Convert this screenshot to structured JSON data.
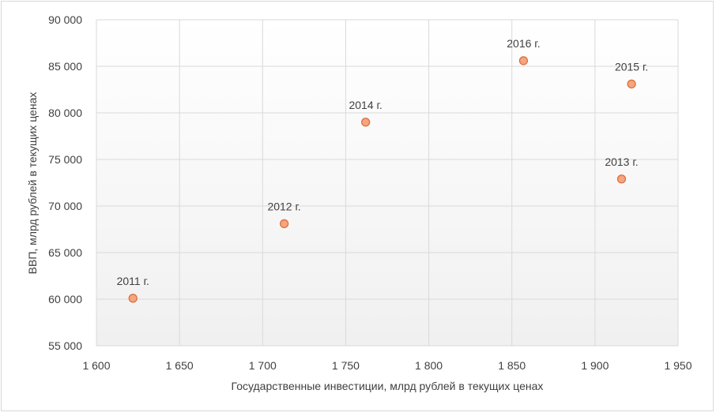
{
  "chart_data": {
    "type": "scatter",
    "title": "",
    "xlabel": "Государственные инвестиции, млрд рублей в текущих ценах",
    "ylabel": "ВВП, млрд рублей в текущих ценах",
    "xlim": [
      1600,
      1950
    ],
    "ylim": [
      55000,
      90000
    ],
    "x_ticks": [
      1600,
      1650,
      1700,
      1750,
      1800,
      1850,
      1900,
      1950
    ],
    "y_ticks": [
      55000,
      60000,
      65000,
      70000,
      75000,
      80000,
      85000,
      90000
    ],
    "x_tick_labels": [
      "1 600",
      "1 650",
      "1 700",
      "1 750",
      "1 800",
      "1 850",
      "1 900",
      "1 950"
    ],
    "y_tick_labels": [
      "55 000",
      "60 000",
      "65 000",
      "70 000",
      "75 000",
      "80 000",
      "85 000",
      "90 000"
    ],
    "grid": true,
    "legend": "none",
    "marker_color": "#f4a582",
    "marker_edge_color": "#e0703a",
    "points": [
      {
        "label": "2011 г.",
        "x": 1622,
        "y": 60100
      },
      {
        "label": "2012 г.",
        "x": 1713,
        "y": 68100
      },
      {
        "label": "2013 г.",
        "x": 1916,
        "y": 72900
      },
      {
        "label": "2014 г.",
        "x": 1762,
        "y": 79000
      },
      {
        "label": "2015 г.",
        "x": 1922,
        "y": 83100
      },
      {
        "label": "2016 г.",
        "x": 1857,
        "y": 85600
      }
    ]
  }
}
